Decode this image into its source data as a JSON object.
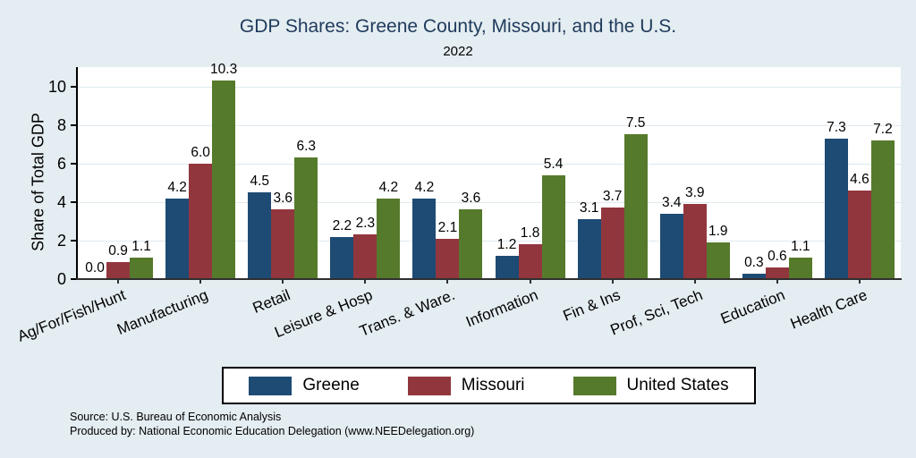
{
  "title": "GDP Shares: Greene County, Missouri, and the U.S.",
  "subtitle": "2022",
  "footer": {
    "source": "Source: U.S. Bureau of Economic Analysis",
    "produced_by": "Produced by: National Economic Education Delegation (www.NEEDelegation.org)"
  },
  "colors": {
    "background": "#e4edf1",
    "plot_background": "#ffffff",
    "title": "#1f3a5c",
    "gridline": "#dfe9ef",
    "greene": "#1d4b74",
    "missouri": "#92363e",
    "united_states": "#567a2c"
  },
  "chart_data": {
    "type": "bar",
    "title": "GDP Shares: Greene County, Missouri, and the U.S.",
    "subtitle": "2022",
    "xlabel": "",
    "ylabel": "Share of Total GDP",
    "ylim": [
      0,
      11
    ],
    "yticks": [
      0,
      2,
      4,
      6,
      8,
      10
    ],
    "grid": true,
    "legend_position": "bottom",
    "value_labels_decimals": 1,
    "categories": [
      "Ag/For/Fish/Hunt",
      "Manufacturing",
      "Retail",
      "Leisure & Hosp",
      "Trans. & Ware.",
      "Information",
      "Fin & Ins",
      "Prof, Sci, Tech",
      "Education",
      "Health Care"
    ],
    "series": [
      {
        "name": "Greene",
        "color": "#1d4b74",
        "values": [
          0.0,
          4.2,
          4.5,
          2.2,
          4.2,
          1.2,
          3.1,
          3.4,
          0.3,
          7.3
        ]
      },
      {
        "name": "Missouri",
        "color": "#92363e",
        "values": [
          0.9,
          6.0,
          3.6,
          2.3,
          2.1,
          1.8,
          3.7,
          3.9,
          0.6,
          4.6
        ]
      },
      {
        "name": "United States",
        "color": "#567a2c",
        "values": [
          1.1,
          10.3,
          6.3,
          4.2,
          3.6,
          5.4,
          7.5,
          1.9,
          1.1,
          7.2
        ]
      }
    ]
  }
}
